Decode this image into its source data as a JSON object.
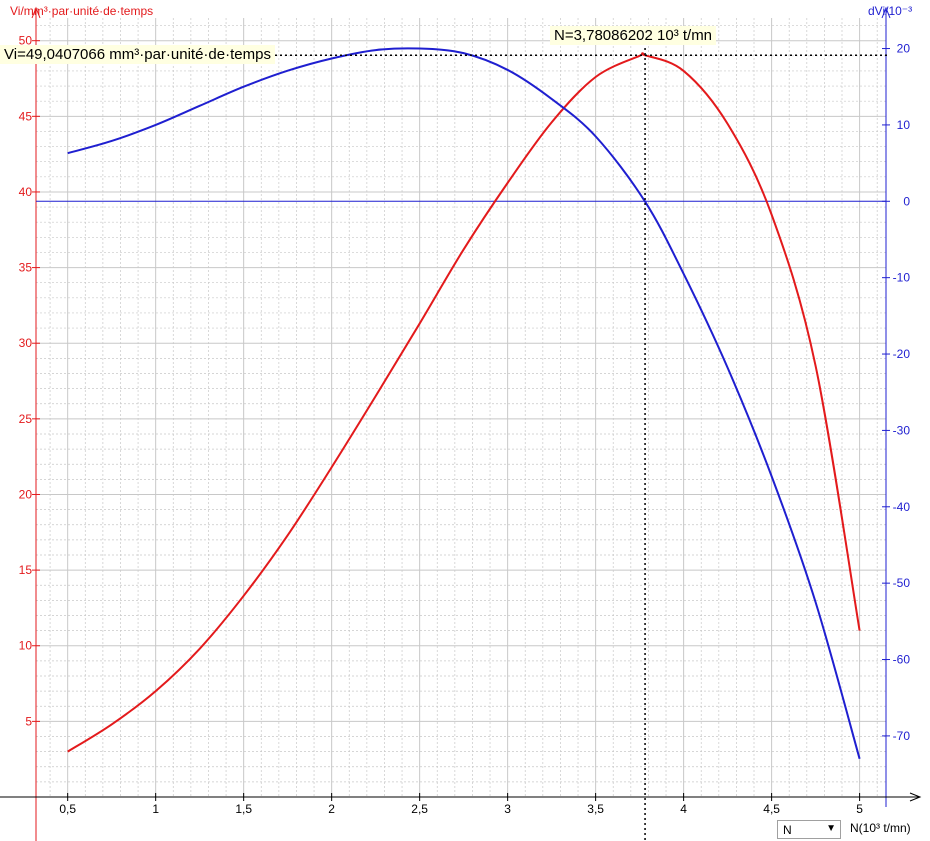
{
  "chart_data": {
    "type": "line",
    "x_variable": "N",
    "xlabel": "N(10³ t/mn)",
    "ylabel_left": "Vi/mm³·par·unité·de·temps",
    "ylabel_right": "dVi/10⁻³",
    "xlim": [
      0.32,
      5.15
    ],
    "ylim_left": [
      0,
      51.5
    ],
    "ylim_right": [
      -78,
      24
    ],
    "x_ticks": [
      0.5,
      1,
      1.5,
      2,
      2.5,
      3,
      3.5,
      4,
      4.5,
      5
    ],
    "x_tick_labels": [
      "0,5",
      "1",
      "1,5",
      "2",
      "2,5",
      "3",
      "3,5",
      "4",
      "4,5",
      "5"
    ],
    "y_left_ticks": [
      5,
      10,
      15,
      20,
      25,
      30,
      35,
      40,
      45,
      50
    ],
    "y_left_tick_labels": [
      "5",
      "10",
      "15",
      "20",
      "25",
      "30",
      "35",
      "40",
      "45",
      "50"
    ],
    "y_right_ticks": [
      20,
      10,
      0,
      -10,
      -20,
      -30,
      -40,
      -50,
      -60,
      -70
    ],
    "y_right_tick_labels": [
      "20",
      "10",
      "0",
      "-10",
      "-20",
      "-30",
      "-40",
      "-50",
      "-60",
      "-70"
    ],
    "grid": true,
    "series": [
      {
        "name": "Vi",
        "axis": "left",
        "color": "#e31a1c",
        "x": [
          0.5,
          0.75,
          1.0,
          1.25,
          1.5,
          1.75,
          2.0,
          2.25,
          2.5,
          2.75,
          3.0,
          3.25,
          3.5,
          3.75,
          3.78,
          4.0,
          4.25,
          4.5,
          4.75,
          5.0
        ],
        "y": [
          3.0,
          4.8,
          7.0,
          9.8,
          13.3,
          17.3,
          21.8,
          26.5,
          31.3,
          36.2,
          40.6,
          44.6,
          47.6,
          49.0,
          49.04,
          48.0,
          44.5,
          38.5,
          28.5,
          11.0
        ]
      },
      {
        "name": "dVi",
        "axis": "right",
        "color": "#1f1fd0",
        "x": [
          0.5,
          0.75,
          1.0,
          1.25,
          1.5,
          1.75,
          2.0,
          2.25,
          2.5,
          2.75,
          3.0,
          3.25,
          3.5,
          3.78,
          4.0,
          4.25,
          4.5,
          4.75,
          5.0
        ],
        "y": [
          6.3,
          7.9,
          10.0,
          12.5,
          15.0,
          17.1,
          18.7,
          19.8,
          20.0,
          19.4,
          17.2,
          13.4,
          8.5,
          0.0,
          -9.5,
          -21.8,
          -36.0,
          -52.5,
          -73.0
        ]
      }
    ],
    "crosshair": {
      "x": 3.78086202,
      "y_left": 49.0407066,
      "hline_right": 0
    }
  },
  "readouts": {
    "y_value": "Vi=49,0407066 mm³·par·unité·de·temps",
    "x_value": "N=3,78086202 10³ t/mn"
  },
  "controls": {
    "variable_select": "N",
    "x_unit_label": "N(10³ t/mn)"
  },
  "colors": {
    "left_axis": "#e31a1c",
    "right_axis": "#1f1fd0",
    "grid": "#c8c8c8",
    "readout_bg": "#ffffe1"
  }
}
